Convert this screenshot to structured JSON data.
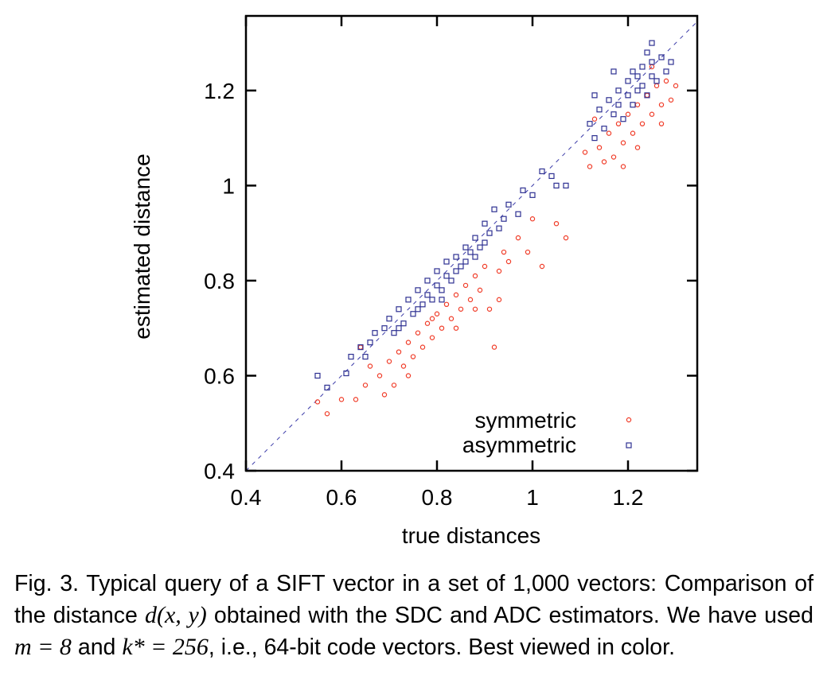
{
  "chart_data": {
    "type": "scatter",
    "xlabel": "true distances",
    "ylabel": "estimated distance",
    "xlim": [
      0.4,
      1.345
    ],
    "ylim": [
      0.4,
      1.357
    ],
    "xticks": [
      "0.4",
      "0.6",
      "0.8",
      "1",
      "1.2"
    ],
    "yticks": [
      "0.4",
      "0.6",
      "0.8",
      "1",
      "1.2"
    ],
    "xtick_values": [
      0.4,
      0.6,
      0.8,
      1.0,
      1.2
    ],
    "ytick_values": [
      0.4,
      0.6,
      0.8,
      1.0,
      1.2
    ],
    "grid": false,
    "legend_position": "bottom-right",
    "reference_line": {
      "style": "dashed",
      "color": "#3a3aa8",
      "equation": "y = x"
    },
    "series": [
      {
        "name": "symmetric",
        "marker": "circle",
        "color": "#f03c28",
        "points": [
          [
            0.55,
            0.545
          ],
          [
            0.57,
            0.52
          ],
          [
            0.6,
            0.55
          ],
          [
            0.63,
            0.55
          ],
          [
            0.65,
            0.58
          ],
          [
            0.66,
            0.62
          ],
          [
            0.68,
            0.6
          ],
          [
            0.7,
            0.63
          ],
          [
            0.71,
            0.58
          ],
          [
            0.72,
            0.65
          ],
          [
            0.73,
            0.62
          ],
          [
            0.74,
            0.67
          ],
          [
            0.75,
            0.64
          ],
          [
            0.76,
            0.69
          ],
          [
            0.77,
            0.66
          ],
          [
            0.78,
            0.71
          ],
          [
            0.79,
            0.68
          ],
          [
            0.8,
            0.73
          ],
          [
            0.81,
            0.7
          ],
          [
            0.82,
            0.75
          ],
          [
            0.83,
            0.72
          ],
          [
            0.84,
            0.77
          ],
          [
            0.85,
            0.74
          ],
          [
            0.86,
            0.79
          ],
          [
            0.87,
            0.76
          ],
          [
            0.88,
            0.81
          ],
          [
            0.89,
            0.78
          ],
          [
            0.9,
            0.83
          ],
          [
            0.91,
            0.74
          ],
          [
            0.92,
            0.66
          ],
          [
            0.93,
            0.82
          ],
          [
            0.94,
            0.86
          ],
          [
            0.95,
            0.84
          ],
          [
            0.97,
            0.89
          ],
          [
            0.99,
            0.86
          ],
          [
            1.0,
            0.93
          ],
          [
            1.02,
            0.83
          ],
          [
            1.05,
            0.92
          ],
          [
            1.07,
            0.89
          ],
          [
            1.11,
            1.07
          ],
          [
            1.12,
            1.04
          ],
          [
            1.14,
            1.08
          ],
          [
            1.15,
            1.05
          ],
          [
            1.16,
            1.11
          ],
          [
            1.17,
            1.06
          ],
          [
            1.18,
            1.13
          ],
          [
            1.19,
            1.09
          ],
          [
            1.2,
            1.15
          ],
          [
            1.21,
            1.11
          ],
          [
            1.22,
            1.17
          ],
          [
            1.23,
            1.13
          ],
          [
            1.24,
            1.19
          ],
          [
            1.25,
            1.15
          ],
          [
            1.26,
            1.21
          ],
          [
            1.27,
            1.17
          ],
          [
            1.28,
            1.22
          ],
          [
            1.29,
            1.18
          ],
          [
            1.3,
            1.21
          ],
          [
            1.27,
            1.13
          ],
          [
            1.19,
            1.04
          ],
          [
            0.64,
            0.66
          ],
          [
            0.69,
            0.56
          ],
          [
            0.74,
            0.6
          ],
          [
            0.79,
            0.72
          ],
          [
            0.84,
            0.7
          ],
          [
            0.88,
            0.74
          ],
          [
            0.93,
            0.76
          ],
          [
            1.22,
            1.08
          ],
          [
            1.13,
            1.14
          ],
          [
            1.25,
            1.25
          ]
        ]
      },
      {
        "name": "asymmetric",
        "marker": "square",
        "color": "#2e3192",
        "points": [
          [
            0.55,
            0.6
          ],
          [
            0.57,
            0.575
          ],
          [
            0.61,
            0.605
          ],
          [
            0.62,
            0.64
          ],
          [
            0.64,
            0.66
          ],
          [
            0.66,
            0.67
          ],
          [
            0.67,
            0.69
          ],
          [
            0.69,
            0.7
          ],
          [
            0.7,
            0.72
          ],
          [
            0.71,
            0.69
          ],
          [
            0.72,
            0.74
          ],
          [
            0.73,
            0.71
          ],
          [
            0.74,
            0.76
          ],
          [
            0.75,
            0.73
          ],
          [
            0.76,
            0.78
          ],
          [
            0.77,
            0.75
          ],
          [
            0.78,
            0.8
          ],
          [
            0.78,
            0.77
          ],
          [
            0.79,
            0.76
          ],
          [
            0.8,
            0.82
          ],
          [
            0.8,
            0.79
          ],
          [
            0.81,
            0.78
          ],
          [
            0.82,
            0.84
          ],
          [
            0.82,
            0.81
          ],
          [
            0.83,
            0.8
          ],
          [
            0.84,
            0.85
          ],
          [
            0.84,
            0.82
          ],
          [
            0.85,
            0.83
          ],
          [
            0.86,
            0.87
          ],
          [
            0.86,
            0.84
          ],
          [
            0.87,
            0.86
          ],
          [
            0.88,
            0.89
          ],
          [
            0.88,
            0.85
          ],
          [
            0.89,
            0.87
          ],
          [
            0.9,
            0.92
          ],
          [
            0.9,
            0.88
          ],
          [
            0.91,
            0.9
          ],
          [
            0.92,
            0.95
          ],
          [
            0.93,
            0.91
          ],
          [
            0.94,
            0.93
          ],
          [
            0.95,
            0.96
          ],
          [
            0.97,
            0.94
          ],
          [
            0.98,
            0.99
          ],
          [
            1.0,
            0.98
          ],
          [
            1.02,
            1.03
          ],
          [
            1.04,
            1.02
          ],
          [
            1.05,
            1.0
          ],
          [
            1.07,
            1.0
          ],
          [
            1.12,
            1.13
          ],
          [
            1.13,
            1.1
          ],
          [
            1.14,
            1.16
          ],
          [
            1.15,
            1.12
          ],
          [
            1.16,
            1.18
          ],
          [
            1.17,
            1.15
          ],
          [
            1.18,
            1.2
          ],
          [
            1.18,
            1.17
          ],
          [
            1.19,
            1.14
          ],
          [
            1.2,
            1.22
          ],
          [
            1.2,
            1.19
          ],
          [
            1.21,
            1.17
          ],
          [
            1.22,
            1.23
          ],
          [
            1.22,
            1.2
          ],
          [
            1.23,
            1.25
          ],
          [
            1.23,
            1.21
          ],
          [
            1.24,
            1.19
          ],
          [
            1.25,
            1.26
          ],
          [
            1.25,
            1.23
          ],
          [
            1.26,
            1.22
          ],
          [
            1.27,
            1.27
          ],
          [
            1.28,
            1.24
          ],
          [
            1.29,
            1.26
          ],
          [
            1.25,
            1.3
          ],
          [
            1.17,
            1.24
          ],
          [
            1.13,
            1.19
          ],
          [
            0.65,
            0.64
          ],
          [
            0.72,
            0.7
          ],
          [
            0.76,
            0.74
          ],
          [
            0.81,
            0.76
          ],
          [
            1.21,
            1.24
          ],
          [
            1.24,
            1.28
          ]
        ]
      }
    ]
  },
  "caption": {
    "part1": "Fig. 3. Typical query of a SIFT vector in a set of 1,000 vectors: Comparison of the distance ",
    "math1": "d(x, y)",
    "part2": " obtained with the SDC and ADC estimators. We have used ",
    "math2": "m = 8",
    "part3": " and ",
    "math3": "k* = 256",
    "part4": ", i.e., 64-bit code vectors. Best viewed in color."
  }
}
